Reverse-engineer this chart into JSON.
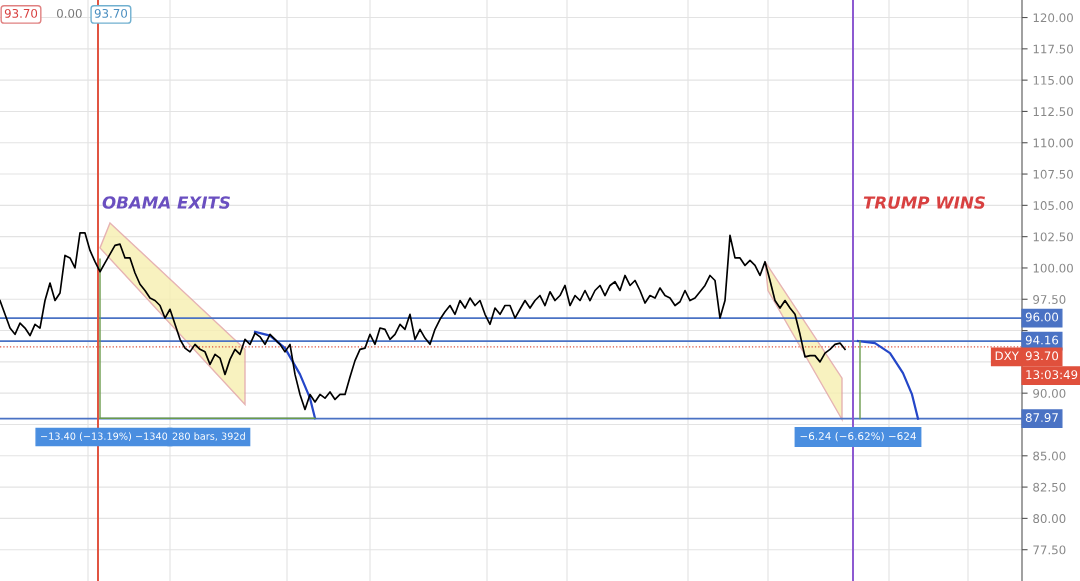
{
  "chart_data": {
    "type": "line",
    "categories": [
      null,
      null,
      null,
      null,
      null,
      null,
      null,
      null,
      null,
      null,
      null,
      null,
      null,
      null,
      null,
      null,
      null,
      null,
      null,
      null,
      null,
      null,
      null,
      null,
      null,
      null,
      null,
      null,
      null,
      null,
      null,
      null,
      null,
      null,
      null,
      null,
      null,
      null,
      null,
      null,
      null,
      null,
      null,
      null,
      null,
      null,
      null,
      null,
      null,
      null,
      null,
      null,
      null,
      null,
      null,
      null,
      null,
      null,
      null,
      null,
      null,
      null,
      null,
      null,
      null,
      null,
      null,
      null,
      null,
      null,
      null,
      null,
      null,
      null,
      null,
      null,
      null,
      null,
      null,
      null,
      null,
      null,
      null,
      null,
      null,
      null,
      null,
      null,
      null,
      null,
      null,
      null,
      null,
      null,
      null,
      null,
      null,
      null,
      null,
      null,
      null,
      null,
      null,
      null,
      null,
      null,
      null,
      null,
      null,
      null,
      null,
      null,
      null,
      null,
      null,
      null,
      null,
      null,
      null,
      null,
      null,
      null,
      null,
      null,
      null,
      null,
      null,
      null,
      null,
      null,
      null,
      null,
      null,
      null,
      null,
      null,
      null,
      null,
      null,
      null,
      null,
      null,
      null,
      null,
      null,
      null,
      null,
      null,
      null,
      null,
      null,
      null,
      null,
      null,
      null,
      null,
      null,
      null,
      null,
      null,
      null,
      null,
      null,
      null,
      null,
      null,
      null,
      null,
      null,
      null,
      null,
      null,
      null,
      null,
      null,
      null,
      null,
      null,
      null,
      null,
      null,
      null,
      null,
      null,
      null,
      null,
      null,
      null,
      null,
      null,
      null,
      null,
      null,
      null,
      null,
      null,
      null,
      null,
      null,
      null,
      null,
      null,
      null,
      null,
      null
    ],
    "series": [
      {
        "color": "#000000",
        "values": [
          97.4,
          96.3,
          95.2,
          94.7,
          95.6,
          95.2,
          94.6,
          95.5,
          95.2,
          97.4,
          98.8,
          97.4,
          98.0,
          101.0,
          100.8,
          100.0,
          102.8,
          102.8,
          101.4,
          100.5,
          99.7,
          100.4,
          101.1,
          101.8,
          101.9,
          100.8,
          100.8,
          99.6,
          98.7,
          98.2,
          97.6,
          97.4,
          97.0,
          96.0,
          96.7,
          95.5,
          94.3,
          93.6,
          93.3,
          93.9,
          93.5,
          93.3,
          92.3,
          93.1,
          92.8,
          91.5,
          92.7,
          93.5,
          93.1,
          94.3,
          93.9,
          94.8,
          94.5,
          93.9,
          94.7,
          94.3,
          93.9,
          93.3,
          93.9,
          91.5,
          89.9,
          88.7,
          89.9,
          89.3,
          89.9,
          89.6,
          90.1,
          89.5,
          89.9,
          89.9,
          91.3,
          92.6,
          93.5,
          93.6,
          94.7,
          93.9,
          95.2,
          95.1,
          94.3,
          94.7,
          95.5,
          95.1,
          96.3,
          94.3,
          95.1,
          94.4,
          93.9,
          95.1,
          95.9,
          96.5,
          97.0,
          96.3,
          97.4,
          96.8,
          97.6,
          97.0,
          97.4,
          96.3,
          95.5,
          96.8,
          96.3,
          97.0,
          97.0,
          96.0,
          96.7,
          97.4,
          96.8,
          97.4,
          97.8,
          97.0,
          98.1,
          97.4,
          97.8,
          98.6,
          97.0,
          97.8,
          97.4,
          98.2,
          97.4,
          98.2,
          98.6,
          97.8,
          98.6,
          98.9,
          98.2,
          99.4,
          98.6,
          99.0,
          98.2,
          97.2,
          97.8,
          97.6,
          98.4,
          97.8,
          97.6,
          97.0,
          97.3,
          98.2,
          97.4,
          97.6,
          98.1,
          98.6,
          99.4,
          99.0,
          96.0,
          97.4,
          102.6,
          100.8,
          100.8,
          100.2,
          100.6,
          100.2,
          99.4,
          100.5,
          99.0,
          97.4,
          96.8,
          97.4,
          96.8,
          96.3,
          94.7,
          92.9,
          93.0,
          93.0,
          92.5,
          93.2,
          93.5,
          93.9,
          94.0,
          93.5,
          null,
          null,
          null,
          null,
          null,
          null,
          null,
          null,
          null,
          null,
          null,
          null,
          null,
          null,
          null,
          null,
          null,
          null,
          null,
          null,
          null,
          null,
          null,
          null,
          null,
          null,
          null,
          null,
          null,
          null,
          null,
          null,
          null,
          null,
          null
        ]
      }
    ],
    "ylim": [
      75,
      121.4
    ],
    "yticks": [
      {
        "value": 77.5,
        "label": "77.50"
      },
      {
        "value": 80,
        "label": "80.00"
      },
      {
        "value": 82.5,
        "label": "82.50"
      },
      {
        "value": 85,
        "label": "85.00"
      },
      {
        "value": 87.5,
        "label": null
      },
      {
        "value": 90,
        "label": "90.00"
      },
      {
        "value": 92.5,
        "label": null
      },
      {
        "value": 95,
        "label": null
      },
      {
        "value": 97.5,
        "label": "97.50"
      },
      {
        "value": 100,
        "label": "100.00"
      },
      {
        "value": 102.5,
        "label": "102.50"
      },
      {
        "value": 105,
        "label": "105.00"
      },
      {
        "value": 107.5,
        "label": "107.50"
      },
      {
        "value": 110,
        "label": "110.00"
      },
      {
        "value": 112.5,
        "label": "112.50"
      },
      {
        "value": 115,
        "label": "115.00"
      },
      {
        "value": 117.5,
        "label": "117.50"
      },
      {
        "value": 120,
        "label": "120.00"
      }
    ],
    "tick_labels": "y",
    "grid": true,
    "ref_lines": [
      {
        "axis": "y",
        "value": 96.0,
        "label": "96.00",
        "color": "#4a72c4"
      },
      {
        "axis": "y",
        "value": 94.16,
        "label": "94.16",
        "color": "#4a72c4"
      },
      {
        "axis": "y",
        "value": 87.97,
        "label": "87.97",
        "color": "#4a72c4"
      },
      {
        "axis": "y",
        "value": 93.7,
        "label": "93.70",
        "color": "#e0503c",
        "line_style": "dotted"
      }
    ],
    "annotations": [
      "OBAMA EXITS",
      "TRUMP WINS",
      "−13.40 (−13.19%) −1340",
      "280 bars, 392d",
      "−6.24 (−6.62%) −624",
      "93.70",
      "0.00",
      "93.70",
      "DXY",
      "13:03:49"
    ]
  }
}
